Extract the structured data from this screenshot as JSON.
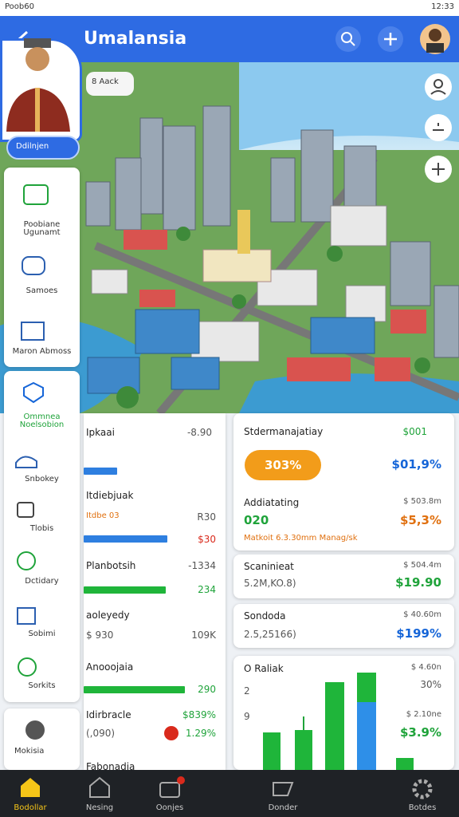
{
  "status_bar": {
    "carrier": "Poob60",
    "time": "12:33"
  },
  "header": {
    "title": "Umalansia"
  },
  "map": {
    "badge": "8 Aack"
  },
  "profile": {
    "button": "Ddilnjen"
  },
  "sidebar": {
    "group1": [
      "Poobiane Ugunamt",
      "Samoes",
      "Maron Abmoss"
    ],
    "group2": [
      "Ommnea Noelsobion",
      "Snbokey",
      "Tlobis",
      "Dctidary",
      "Sobimi",
      "Sorkits"
    ],
    "group3": [
      "Mokisia"
    ]
  },
  "list": [
    {
      "title": "Ipkaai",
      "value": "-8.90"
    },
    {
      "title": "Itdiebjuak",
      "sub": "Itdbe 03",
      "value": "R30",
      "amount": "$30"
    },
    {
      "title": "Planbotsih",
      "value": "-1334",
      "amount": "234"
    },
    {
      "title": "aoleyedy",
      "sub": "$ 930",
      "value": "109K"
    },
    {
      "title": "Anooojaia",
      "amount": "290"
    },
    {
      "title": "Idirbracle",
      "value": "$839%",
      "sub": "(,090)",
      "amount": "1.29%"
    },
    {
      "title": "Fabonadia"
    }
  ],
  "cards": [
    {
      "title": "Stdermanajatiay",
      "value": "$001",
      "pill": "303%",
      "amount": "$01,9%"
    },
    {
      "title": "Addiatating",
      "value": "$ 503.8m",
      "main": "020",
      "amount": "$5,3%",
      "note": "Matkoit 6.3.30mm Manag/sk"
    },
    {
      "title": "Scaninieat",
      "value": "$ 504.4m",
      "sub": "5.2M,KO.8)",
      "amount": "$19.90"
    },
    {
      "title": "Sondoda",
      "value": "$ 40.60m",
      "sub": "2.5,25166)",
      "amount": "$199%"
    },
    {
      "title": "O Raliak",
      "value": "$ 4.60n",
      "pct": "30%",
      "axis1": "2",
      "axis2": "9",
      "value2": "$ 2.10ne",
      "pct2": "$3.9%"
    }
  ],
  "nav": [
    "Bodollar",
    "Nesing",
    "Oonjes",
    "Donder",
    "Botdes"
  ]
}
